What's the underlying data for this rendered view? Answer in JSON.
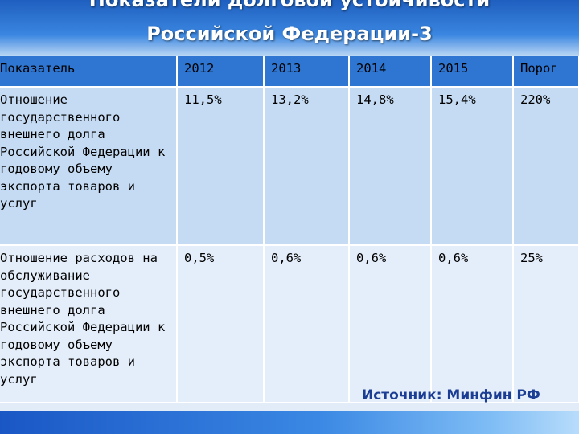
{
  "slide": {
    "title_line1": "Показатели долговой устойчивости",
    "title_line2": "Российской Федерации-3"
  },
  "table": {
    "headers": [
      "Показатель",
      "2012",
      "2013",
      "2014",
      "2015",
      "Порог"
    ],
    "rows": [
      {
        "indicator": "Отношение государственного внешнего долга Российской Федерации к годовому объему экспорта товаров и услуг",
        "values": [
          "11,5%",
          "13,2%",
          "14,8%",
          "15,4%",
          "220%"
        ]
      },
      {
        "indicator": "Отношение расходов на обслуживание государственного внешнего долга Российской Федерации к годовому объему экспорта товаров и услуг",
        "values": [
          "0,5%",
          "0,6%",
          "0,6%",
          "0,6%",
          "25%"
        ]
      }
    ]
  },
  "source": "Источник: Минфин РФ",
  "colors": {
    "header_bg": "#2f76d2",
    "row1_bg": "#c5dbf3",
    "row2_bg": "#e4eefa",
    "source_text": "#1b3d94"
  }
}
